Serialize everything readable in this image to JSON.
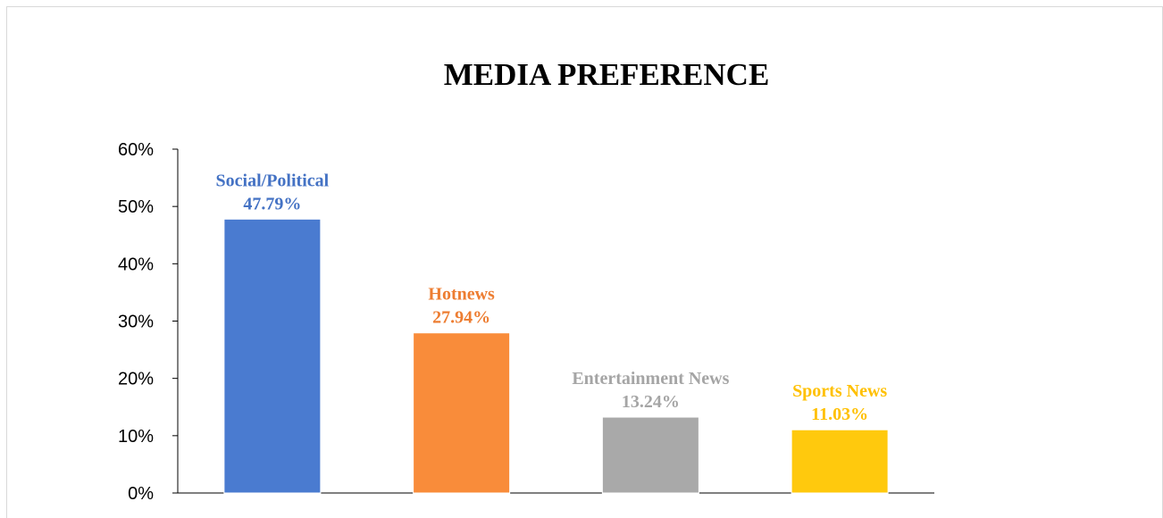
{
  "chart_data": {
    "type": "bar",
    "title": "MEDIA PREFERENCE",
    "xlabel": "",
    "ylabel": "",
    "categories": [
      "Social/Political",
      "Hotnews",
      "Entertainment News",
      "Sports News"
    ],
    "values": [
      47.79,
      27.94,
      13.24,
      11.03
    ],
    "value_labels": [
      "47.79%",
      "27.94%",
      "13.24%",
      "11.03%"
    ],
    "colors": [
      "#4a7bd0",
      "#f98c3a",
      "#a9a9a9",
      "#ffc90d"
    ],
    "label_colors": [
      "#4472c4",
      "#ed7d31",
      "#a5a5a5",
      "#ffc000"
    ],
    "ylim": [
      0,
      60
    ],
    "yticks": [
      0,
      10,
      20,
      30,
      40,
      50,
      60
    ],
    "ytick_labels": [
      "0%",
      "10%",
      "20%",
      "30%",
      "40%",
      "50%",
      "60%"
    ],
    "grid": false,
    "legend": "none"
  }
}
